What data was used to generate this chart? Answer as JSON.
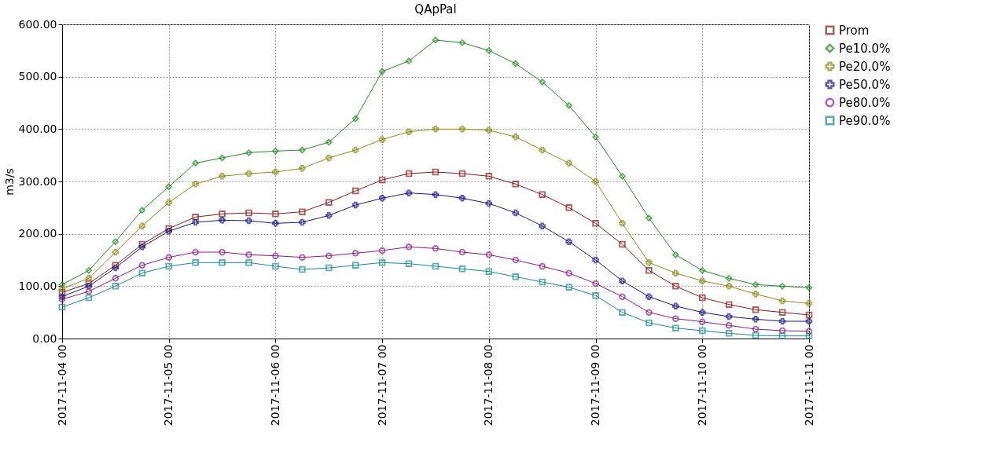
{
  "chart_data": {
    "type": "line",
    "title": "QApPal",
    "ylabel": "m3/s",
    "x": [
      "2017-11-04T00:00",
      "2017-11-04T06:00",
      "2017-11-04T12:00",
      "2017-11-04T18:00",
      "2017-11-05T00:00",
      "2017-11-05T06:00",
      "2017-11-05T12:00",
      "2017-11-05T18:00",
      "2017-11-06T00:00",
      "2017-11-06T06:00",
      "2017-11-06T12:00",
      "2017-11-06T18:00",
      "2017-11-07T00:00",
      "2017-11-07T06:00",
      "2017-11-07T12:00",
      "2017-11-07T18:00",
      "2017-11-08T00:00",
      "2017-11-08T06:00",
      "2017-11-08T12:00",
      "2017-11-08T18:00",
      "2017-11-09T00:00",
      "2017-11-09T06:00",
      "2017-11-09T12:00",
      "2017-11-09T18:00",
      "2017-11-10T00:00",
      "2017-11-10T06:00",
      "2017-11-10T12:00",
      "2017-11-10T18:00",
      "2017-11-11T00:00"
    ],
    "series": [
      {
        "name": "Prom",
        "color": "#8b1a1a",
        "marker": "square",
        "values": [
          88,
          105,
          140,
          180,
          210,
          232,
          238,
          240,
          238,
          242,
          260,
          282,
          303,
          315,
          318,
          315,
          310,
          295,
          275,
          250,
          220,
          180,
          130,
          100,
          78,
          65,
          55,
          50,
          45
        ]
      },
      {
        "name": "Pe10.0%",
        "color": "#1e8b1e",
        "marker": "diamond",
        "values": [
          103,
          130,
          185,
          245,
          290,
          335,
          345,
          355,
          358,
          360,
          375,
          420,
          510,
          530,
          570,
          565,
          550,
          525,
          490,
          445,
          385,
          310,
          230,
          160,
          130,
          115,
          103,
          100,
          97
        ]
      },
      {
        "name": "Pe20.0%",
        "color": "#8b8b1a",
        "marker": "cross",
        "values": [
          95,
          115,
          165,
          215,
          260,
          295,
          310,
          315,
          318,
          325,
          345,
          360,
          380,
          395,
          400,
          400,
          398,
          385,
          360,
          335,
          300,
          220,
          145,
          125,
          110,
          100,
          85,
          72,
          67
        ]
      },
      {
        "name": "Pe50.0%",
        "color": "#1a1a80",
        "marker": "cross",
        "values": [
          80,
          100,
          135,
          175,
          205,
          222,
          226,
          225,
          220,
          222,
          235,
          255,
          268,
          278,
          275,
          268,
          258,
          240,
          215,
          185,
          150,
          110,
          80,
          62,
          50,
          42,
          37,
          33,
          33
        ]
      },
      {
        "name": "Pe80.0%",
        "color": "#8b1a8b",
        "marker": "circle",
        "values": [
          75,
          90,
          115,
          140,
          155,
          165,
          165,
          160,
          158,
          155,
          158,
          163,
          168,
          175,
          172,
          165,
          160,
          150,
          138,
          125,
          105,
          80,
          50,
          38,
          32,
          25,
          18,
          15,
          14
        ]
      },
      {
        "name": "Pe90.0%",
        "color": "#1a8b8b",
        "marker": "square",
        "values": [
          60,
          78,
          100,
          125,
          138,
          145,
          145,
          145,
          138,
          132,
          135,
          140,
          145,
          143,
          138,
          133,
          128,
          118,
          108,
          98,
          82,
          50,
          30,
          20,
          15,
          10,
          6,
          5,
          5
        ]
      }
    ],
    "xlim": [
      "2017-11-04T00:00",
      "2017-11-11T00:00"
    ],
    "xticks": [
      {
        "value": "2017-11-04T00:00",
        "label": "2017-11-04 00"
      },
      {
        "value": "2017-11-05T00:00",
        "label": "2017-11-05 00"
      },
      {
        "value": "2017-11-06T00:00",
        "label": "2017-11-06 00"
      },
      {
        "value": "2017-11-07T00:00",
        "label": "2017-11-07 00"
      },
      {
        "value": "2017-11-08T00:00",
        "label": "2017-11-08 00"
      },
      {
        "value": "2017-11-09T00:00",
        "label": "2017-11-09 00"
      },
      {
        "value": "2017-11-10T00:00",
        "label": "2017-11-10 00"
      },
      {
        "value": "2017-11-11T00:00",
        "label": "2017-11-11 00"
      }
    ],
    "ylim": [
      0,
      600
    ],
    "yticks": [
      {
        "value": 0,
        "label": "0.00"
      },
      {
        "value": 100,
        "label": "100.00"
      },
      {
        "value": 200,
        "label": "200.00"
      },
      {
        "value": 300,
        "label": "300.00"
      },
      {
        "value": 400,
        "label": "400.00"
      },
      {
        "value": 500,
        "label": "500.00"
      },
      {
        "value": 600,
        "label": "600.00"
      }
    ],
    "grid": true,
    "legend": "top right",
    "line_style": "solid"
  }
}
